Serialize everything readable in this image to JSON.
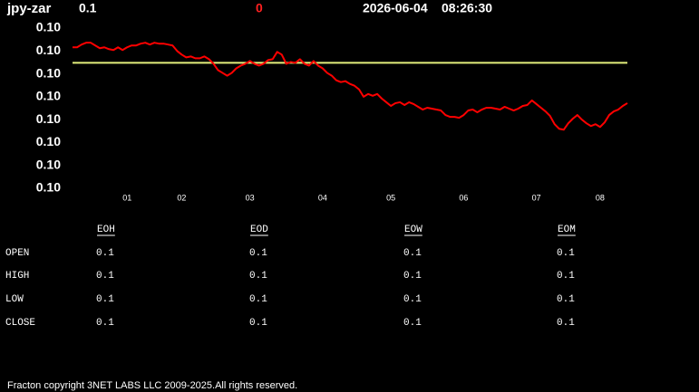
{
  "header": {
    "symbol": "jpy-zar",
    "last": "0.1",
    "change": "0",
    "date": "2026-06-04",
    "time": "08:26:30"
  },
  "chart_data": {
    "type": "line",
    "series": [
      {
        "color": "#ff0000",
        "values": [
          0.10758,
          0.10758,
          0.10764,
          0.10768,
          0.10768,
          0.10762,
          0.10756,
          0.10758,
          0.10754,
          0.10752,
          0.10758,
          0.10752,
          0.10758,
          0.10762,
          0.10762,
          0.10766,
          0.10768,
          0.10764,
          0.10768,
          0.10766,
          0.10766,
          0.10764,
          0.10762,
          0.1075,
          0.10742,
          0.10736,
          0.10738,
          0.10734,
          0.10734,
          0.10738,
          0.10732,
          0.10722,
          0.10708,
          0.10702,
          0.10696,
          0.10702,
          0.10712,
          0.10718,
          0.10722,
          0.10728,
          0.10722,
          0.10718,
          0.10722,
          0.1073,
          0.10732,
          0.10748,
          0.10742,
          0.10722,
          0.10726,
          0.10724,
          0.10732,
          0.10722,
          0.10718,
          0.10728,
          0.10718,
          0.10712,
          0.10702,
          0.10696,
          0.10686,
          0.10682,
          0.10684,
          0.10678,
          0.10674,
          0.10666,
          0.1065,
          0.10656,
          0.10652,
          0.10656,
          0.10646,
          0.10638,
          0.1063,
          0.10636,
          0.10638,
          0.10632,
          0.10638,
          0.10634,
          0.10628,
          0.10622,
          0.10626,
          0.10624,
          0.10622,
          0.1062,
          0.1061,
          0.10606,
          0.10606,
          0.10604,
          0.1061,
          0.1062,
          0.10622,
          0.10616,
          0.10622,
          0.10626,
          0.10626,
          0.10624,
          0.10622,
          0.10628,
          0.10624,
          0.1062,
          0.10624,
          0.1063,
          0.10632,
          0.10642,
          0.10634,
          0.10626,
          0.10618,
          0.10608,
          0.1059,
          0.1058,
          0.10578,
          0.10592,
          0.10602,
          0.1061,
          0.106,
          0.10592,
          0.10586,
          0.1059,
          0.10584,
          0.10594,
          0.1061,
          0.10618,
          0.10622,
          0.1063,
          0.10636
        ]
      }
    ],
    "reference_line": {
      "value": 0.10724,
      "color": "#e4f07c"
    },
    "xlim": [
      0,
      122
    ],
    "xticks": [
      {
        "value": 12,
        "label": "01"
      },
      {
        "value": 24,
        "label": "02"
      },
      {
        "value": 39,
        "label": "03"
      },
      {
        "value": 55,
        "label": "04"
      },
      {
        "value": 70,
        "label": "05"
      },
      {
        "value": 86,
        "label": "06"
      },
      {
        "value": 102,
        "label": "07"
      },
      {
        "value": 116,
        "label": "08"
      }
    ],
    "ylim": [
      0.1045,
      0.108
    ],
    "yticks": [
      {
        "value": 0.108,
        "label": "0.10"
      },
      {
        "value": 0.1075,
        "label": "0.10"
      },
      {
        "value": 0.107,
        "label": "0.10"
      },
      {
        "value": 0.1065,
        "label": "0.10"
      },
      {
        "value": 0.106,
        "label": "0.10"
      },
      {
        "value": 0.1055,
        "label": "0.10"
      },
      {
        "value": 0.105,
        "label": "0.10"
      },
      {
        "value": 0.1045,
        "label": "0.10"
      }
    ]
  },
  "table": {
    "columns": [
      "EOH",
      "EOD",
      "EOW",
      "EOM"
    ],
    "rows": [
      {
        "label": "OPEN",
        "values": [
          "0.1",
          "0.1",
          "0.1",
          "0.1"
        ]
      },
      {
        "label": "HIGH",
        "values": [
          "0.1",
          "0.1",
          "0.1",
          "0.1"
        ]
      },
      {
        "label": "LOW",
        "values": [
          "0.1",
          "0.1",
          "0.1",
          "0.1"
        ]
      },
      {
        "label": "CLOSE",
        "values": [
          "0.1",
          "0.1",
          "0.1",
          "0.1"
        ]
      }
    ]
  },
  "footer": "Fracton copyright 3NET LABS LLC 2009-2025.All rights reserved."
}
